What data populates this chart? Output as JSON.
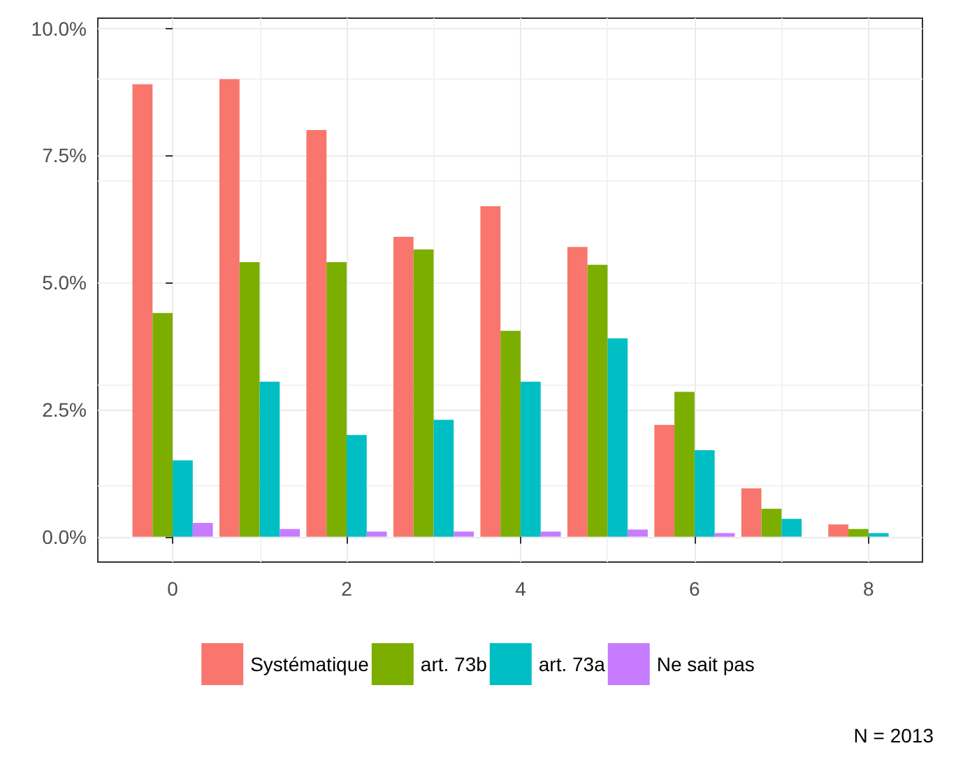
{
  "chart_data": {
    "type": "bar",
    "x": [
      0,
      1,
      2,
      3,
      4,
      5,
      6,
      7,
      8
    ],
    "series": [
      {
        "name": "Systématique",
        "color": "#f8766d",
        "values": [
          8.9,
          9.0,
          8.0,
          5.9,
          6.5,
          5.7,
          2.2,
          0.95,
          0.24
        ]
      },
      {
        "name": "art. 73b",
        "color": "#7cae00",
        "values": [
          4.4,
          5.4,
          5.4,
          5.65,
          4.05,
          5.35,
          2.85,
          0.55,
          0.15
        ]
      },
      {
        "name": "art. 73a",
        "color": "#00bfc4",
        "values": [
          1.5,
          3.05,
          2.0,
          2.3,
          3.05,
          3.9,
          1.7,
          0.35,
          0.07
        ]
      },
      {
        "name": "Ne sait pas",
        "color": "#c77cff",
        "values": [
          0.27,
          0.15,
          0.1,
          0.1,
          0.1,
          0.14,
          0.07,
          null,
          null
        ]
      }
    ],
    "xlim": [
      -0.86,
      8.62
    ],
    "xticks": [
      0,
      2,
      4,
      6,
      8
    ],
    "ylim": [
      -0.5,
      10.2
    ],
    "yticks": [
      {
        "value": 0,
        "label": "0.0%"
      },
      {
        "value": 2.5,
        "label": "2.5%"
      },
      {
        "value": 5,
        "label": "5.0%"
      },
      {
        "value": 7.5,
        "label": "7.5%"
      },
      {
        "value": 10,
        "label": "10.0%"
      }
    ],
    "grid": true,
    "legend": "bottom",
    "annotations": [
      "N = 2013"
    ]
  }
}
